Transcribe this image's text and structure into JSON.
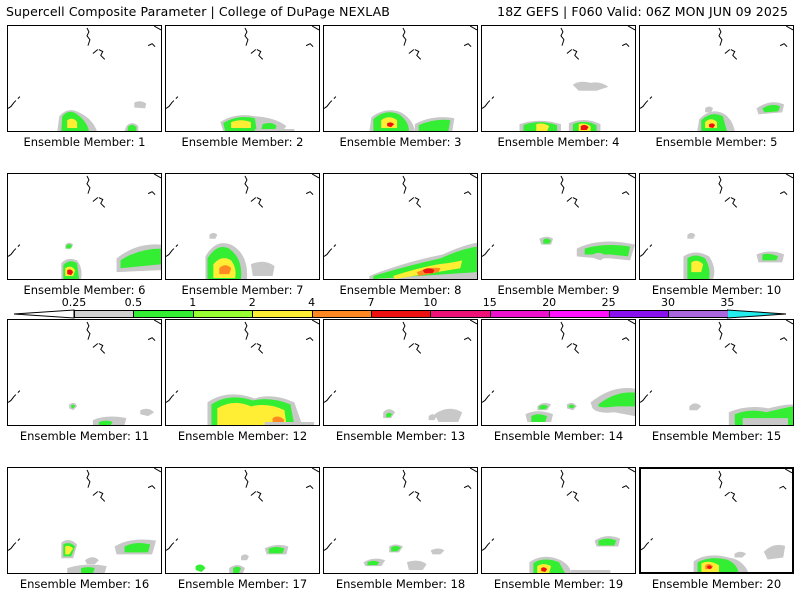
{
  "header": {
    "left_title": "Supercell Composite Parameter | College of DuPage NEXLAB",
    "right_title": "18Z GEFS | F060 Valid: 06Z MON JUN 09 2025"
  },
  "colorbar": {
    "tick_labels": [
      "0.25",
      "0.5",
      "1",
      "2",
      "4",
      "7",
      "10",
      "15",
      "20",
      "25",
      "30",
      "35"
    ],
    "colors": [
      "#d0d0d0",
      "#33ee33",
      "#99ff33",
      "#ffee33",
      "#ff8822",
      "#ee1111",
      "#ee1177",
      "#ee11cc",
      "#ff11ff",
      "#8811ee",
      "#aa66dd",
      "#22eeee"
    ],
    "end_colors": {
      "low": "#ffffff",
      "high": "#22eeee"
    }
  },
  "members": [
    {
      "label": "Ensemble Member: 1"
    },
    {
      "label": "Ensemble Member: 2"
    },
    {
      "label": "Ensemble Member: 3"
    },
    {
      "label": "Ensemble Member: 4"
    },
    {
      "label": "Ensemble Member: 5"
    },
    {
      "label": "Ensemble Member: 6"
    },
    {
      "label": "Ensemble Member: 7"
    },
    {
      "label": "Ensemble Member: 8"
    },
    {
      "label": "Ensemble Member: 9"
    },
    {
      "label": "Ensemble Member: 10"
    },
    {
      "label": "Ensemble Member: 11"
    },
    {
      "label": "Ensemble Member: 12"
    },
    {
      "label": "Ensemble Member: 13"
    },
    {
      "label": "Ensemble Member: 14"
    },
    {
      "label": "Ensemble Member: 15"
    },
    {
      "label": "Ensemble Member: 16"
    },
    {
      "label": "Ensemble Member: 17"
    },
    {
      "label": "Ensemble Member: 18"
    },
    {
      "label": "Ensemble Member: 19"
    },
    {
      "label": "Ensemble Member: 20"
    }
  ],
  "selected_member": "Ensemble Member: 20",
  "map_colors": {
    "coast": "#000000",
    "gray": "#c8c8c8",
    "green": "#33ee33",
    "lightgreen": "#99ff33",
    "yellow": "#ffee33",
    "orange": "#ff8822",
    "red": "#ee1111"
  }
}
